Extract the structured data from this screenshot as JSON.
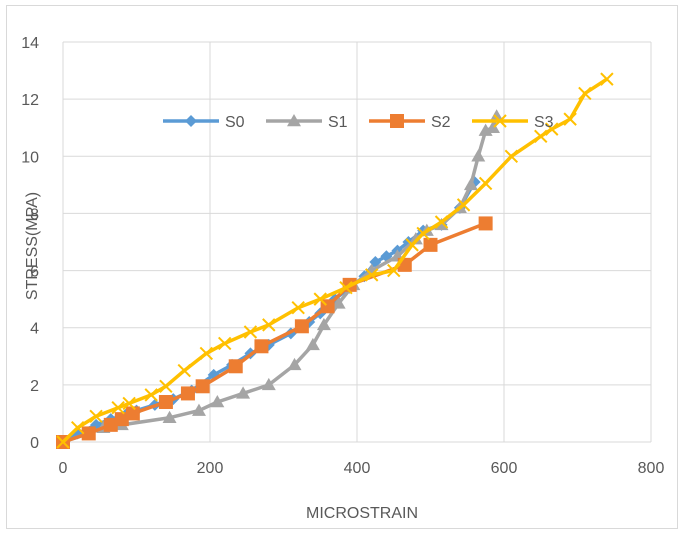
{
  "chart_data": {
    "type": "line",
    "title": "",
    "xlabel": "MICROSTRAIN",
    "ylabel": "STRESS(MPA)",
    "xlim": [
      0,
      800
    ],
    "ylim": [
      0,
      14
    ],
    "x_ticks": [
      0,
      200,
      400,
      600,
      800
    ],
    "y_ticks": [
      0,
      2,
      4,
      6,
      8,
      10,
      12,
      14
    ],
    "grid": "major gridlines on both axes",
    "legend_position": "inside, upper-left area",
    "series": [
      {
        "name": "S0",
        "color": "#5b9bd5",
        "marker": "diamond",
        "points": [
          [
            0,
            0
          ],
          [
            20,
            0.3
          ],
          [
            45,
            0.6
          ],
          [
            65,
            0.8
          ],
          [
            85,
            0.95
          ],
          [
            100,
            1.1
          ],
          [
            125,
            1.3
          ],
          [
            150,
            1.5
          ],
          [
            175,
            1.8
          ],
          [
            205,
            2.35
          ],
          [
            230,
            2.7
          ],
          [
            255,
            3.1
          ],
          [
            280,
            3.4
          ],
          [
            310,
            3.8
          ],
          [
            335,
            4.2
          ],
          [
            350,
            4.5
          ],
          [
            370,
            5.0
          ],
          [
            390,
            5.4
          ],
          [
            410,
            5.8
          ],
          [
            425,
            6.3
          ],
          [
            440,
            6.5
          ],
          [
            455,
            6.7
          ],
          [
            470,
            7.0
          ],
          [
            490,
            7.4
          ],
          [
            515,
            7.6
          ],
          [
            540,
            8.2
          ],
          [
            560,
            9.1
          ]
        ]
      },
      {
        "name": "S1",
        "color": "#a5a5a5",
        "marker": "triangle",
        "points": [
          [
            0,
            0
          ],
          [
            35,
            0.3
          ],
          [
            55,
            0.5
          ],
          [
            80,
            0.6
          ],
          [
            145,
            0.85
          ],
          [
            185,
            1.1
          ],
          [
            210,
            1.4
          ],
          [
            245,
            1.7
          ],
          [
            280,
            2.0
          ],
          [
            315,
            2.7
          ],
          [
            340,
            3.4
          ],
          [
            355,
            4.1
          ],
          [
            375,
            4.85
          ],
          [
            395,
            5.5
          ],
          [
            420,
            6.0
          ],
          [
            455,
            6.5
          ],
          [
            480,
            7.1
          ],
          [
            495,
            7.4
          ],
          [
            515,
            7.6
          ],
          [
            540,
            8.2
          ],
          [
            555,
            9.0
          ],
          [
            565,
            10.0
          ],
          [
            575,
            10.9
          ],
          [
            585,
            11.0
          ],
          [
            590,
            11.4
          ]
        ]
      },
      {
        "name": "S2",
        "color": "#ed7d31",
        "marker": "square",
        "points": [
          [
            0,
            0
          ],
          [
            35,
            0.3
          ],
          [
            65,
            0.6
          ],
          [
            80,
            0.8
          ],
          [
            95,
            1.0
          ],
          [
            140,
            1.4
          ],
          [
            170,
            1.7
          ],
          [
            190,
            1.95
          ],
          [
            235,
            2.65
          ],
          [
            270,
            3.35
          ],
          [
            325,
            4.05
          ],
          [
            360,
            4.75
          ],
          [
            390,
            5.5
          ],
          [
            465,
            6.2
          ],
          [
            500,
            6.9
          ],
          [
            575,
            7.65
          ]
        ]
      },
      {
        "name": "S3",
        "color": "#ffc000",
        "marker": "x",
        "points": [
          [
            0,
            0
          ],
          [
            20,
            0.5
          ],
          [
            45,
            0.9
          ],
          [
            75,
            1.2
          ],
          [
            90,
            1.35
          ],
          [
            120,
            1.65
          ],
          [
            140,
            1.95
          ],
          [
            165,
            2.5
          ],
          [
            195,
            3.1
          ],
          [
            220,
            3.45
          ],
          [
            255,
            3.85
          ],
          [
            280,
            4.1
          ],
          [
            320,
            4.7
          ],
          [
            350,
            5.0
          ],
          [
            385,
            5.4
          ],
          [
            420,
            5.85
          ],
          [
            450,
            6.0
          ],
          [
            475,
            6.9
          ],
          [
            490,
            7.3
          ],
          [
            515,
            7.7
          ],
          [
            545,
            8.3
          ],
          [
            575,
            9.05
          ],
          [
            610,
            10.0
          ],
          [
            650,
            10.7
          ],
          [
            665,
            10.95
          ],
          [
            690,
            11.3
          ],
          [
            710,
            12.2
          ],
          [
            740,
            12.7
          ]
        ]
      }
    ]
  }
}
